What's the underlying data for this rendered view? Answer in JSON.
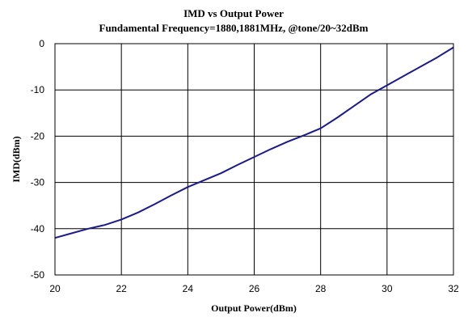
{
  "chart_data": {
    "type": "line",
    "title": "IMD vs Output Power",
    "subtitle": "Fundamental Frequency=1880,1881MHz, @tone/20~32dBm",
    "xlabel": "Output Power(dBm)",
    "ylabel": "IMD(dBm)",
    "xlim": [
      20,
      32
    ],
    "ylim": [
      -50,
      0
    ],
    "x_ticks": [
      "20",
      "22",
      "24",
      "26",
      "28",
      "30",
      "32"
    ],
    "y_ticks": [
      "0",
      "-10",
      "-20",
      "-30",
      "-40",
      "-50"
    ],
    "grid": true,
    "legend": "none",
    "series": [
      {
        "color": "#1a1a8c",
        "x": [
          20,
          20.5,
          21,
          21.5,
          22,
          22.5,
          23,
          23.5,
          24,
          24.5,
          25,
          25.5,
          26,
          26.5,
          27,
          27.5,
          28,
          28.5,
          29,
          29.5,
          30,
          30.5,
          31,
          31.5,
          32
        ],
        "y": [
          -42,
          -41,
          -40,
          -39.2,
          -38,
          -36.5,
          -34.7,
          -32.8,
          -31,
          -29.5,
          -28,
          -26.2,
          -24.5,
          -22.8,
          -21.2,
          -19.8,
          -18.3,
          -16,
          -13.5,
          -11,
          -9,
          -7,
          -5,
          -3,
          -0.8
        ]
      }
    ]
  }
}
